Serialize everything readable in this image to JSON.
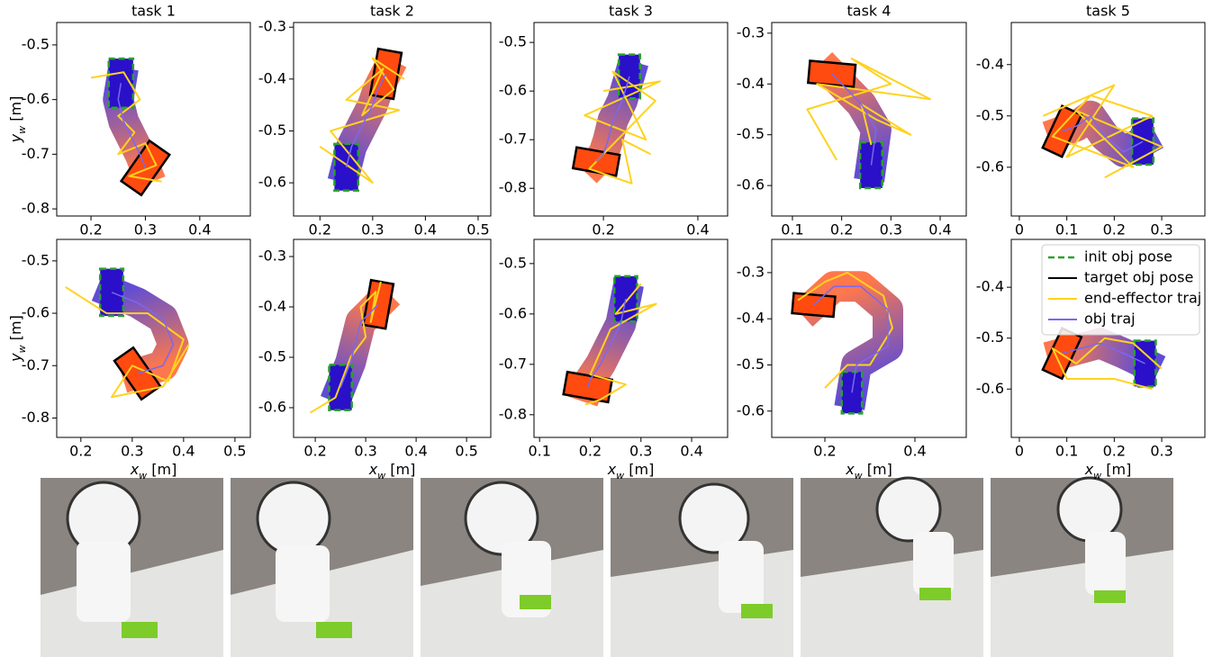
{
  "chart_data": [
    {
      "type": "trajectory",
      "title": "task 1",
      "ylabel": "yw [m]",
      "xlim": [
        0.137,
        0.493
      ],
      "ylim": [
        -0.813,
        -0.459
      ],
      "xticks": [
        0.2,
        0.3,
        0.4
      ],
      "yticks": [
        -0.8,
        -0.7,
        -0.6,
        -0.5
      ],
      "init_pose": [
        0.255,
        -0.57,
        0
      ],
      "target_pose": [
        0.3,
        -0.725,
        35
      ],
      "obj_traj": {
        "x": [
          0.255,
          0.25,
          0.26,
          0.275,
          0.29,
          0.3
        ],
        "y": [
          -0.57,
          -0.6,
          -0.64,
          -0.67,
          -0.7,
          -0.725
        ]
      },
      "ee_traj": {
        "x": [
          0.2,
          0.26,
          0.29,
          0.25,
          0.28,
          0.25,
          0.3,
          0.32,
          0.27,
          0.33
        ],
        "y": [
          -0.56,
          -0.55,
          -0.6,
          -0.63,
          -0.66,
          -0.7,
          -0.68,
          -0.72,
          -0.74,
          -0.75
        ]
      }
    },
    {
      "type": "trajectory",
      "title": "task 2",
      "xlim": [
        0.15,
        0.524
      ],
      "ylim": [
        -0.664,
        -0.291
      ],
      "xticks": [
        0.2,
        0.3,
        0.4,
        0.5
      ],
      "yticks": [
        -0.6,
        -0.5,
        -0.4,
        -0.3
      ],
      "init_pose": [
        0.25,
        -0.57,
        0
      ],
      "target_pose": [
        0.325,
        -0.39,
        10
      ],
      "obj_traj": {
        "x": [
          0.25,
          0.26,
          0.28,
          0.3,
          0.31,
          0.325
        ],
        "y": [
          -0.57,
          -0.53,
          -0.49,
          -0.45,
          -0.42,
          -0.39
        ]
      },
      "ee_traj": {
        "x": [
          0.2,
          0.3,
          0.22,
          0.35,
          0.25,
          0.32,
          0.28,
          0.34,
          0.3,
          0.36
        ],
        "y": [
          -0.53,
          -0.6,
          -0.5,
          -0.46,
          -0.44,
          -0.38,
          -0.47,
          -0.42,
          -0.36,
          -0.4
        ]
      }
    },
    {
      "type": "trajectory",
      "title": "task 3",
      "xlim": [
        0.053,
        0.463
      ],
      "ylim": [
        -0.857,
        -0.459
      ],
      "xticks": [
        0.2,
        0.4
      ],
      "yticks": [
        -0.8,
        -0.7,
        -0.6,
        -0.5
      ],
      "init_pose": [
        0.255,
        -0.57,
        0
      ],
      "target_pose": [
        0.185,
        -0.745,
        100
      ],
      "obj_traj": {
        "x": [
          0.255,
          0.24,
          0.22,
          0.21,
          0.2,
          0.185
        ],
        "y": [
          -0.57,
          -0.62,
          -0.66,
          -0.7,
          -0.73,
          -0.745
        ]
      },
      "ee_traj": {
        "x": [
          0.2,
          0.32,
          0.16,
          0.29,
          0.22,
          0.31,
          0.17,
          0.26,
          0.24,
          0.3
        ],
        "y": [
          -0.6,
          -0.58,
          -0.65,
          -0.7,
          -0.56,
          -0.62,
          -0.76,
          -0.79,
          -0.7,
          -0.73
        ]
      }
    },
    {
      "type": "trajectory",
      "title": "task 4",
      "xlim": [
        0.058,
        0.453
      ],
      "ylim": [
        -0.66,
        -0.279
      ],
      "xticks": [
        0.1,
        0.2,
        0.3,
        0.4
      ],
      "yticks": [
        -0.6,
        -0.5,
        -0.4,
        -0.3
      ],
      "init_pose": [
        0.26,
        -0.56,
        0
      ],
      "target_pose": [
        0.18,
        -0.38,
        95
      ],
      "obj_traj": {
        "x": [
          0.26,
          0.27,
          0.24,
          0.21,
          0.19,
          0.18
        ],
        "y": [
          -0.56,
          -0.49,
          -0.44,
          -0.41,
          -0.39,
          -0.38
        ]
      },
      "ee_traj": {
        "x": [
          0.19,
          0.13,
          0.3,
          0.22,
          0.38,
          0.15,
          0.27,
          0.34,
          0.24,
          0.26
        ],
        "y": [
          -0.55,
          -0.45,
          -0.4,
          -0.35,
          -0.43,
          -0.4,
          -0.47,
          -0.5,
          -0.44,
          -0.52
        ]
      }
    },
    {
      "type": "trajectory",
      "title": "task 5",
      "xlim": [
        -0.017,
        0.391
      ],
      "ylim": [
        -0.695,
        -0.318
      ],
      "xticks": [
        0.0,
        0.1,
        0.2,
        0.3
      ],
      "yticks": [
        -0.6,
        -0.5,
        -0.4
      ],
      "init_pose": [
        0.26,
        -0.55,
        0
      ],
      "target_pose": [
        0.09,
        -0.53,
        25
      ],
      "obj_traj": {
        "x": [
          0.26,
          0.22,
          0.18,
          0.15,
          0.12,
          0.09
        ],
        "y": [
          -0.55,
          -0.57,
          -0.54,
          -0.5,
          -0.52,
          -0.53
        ]
      },
      "ee_traj": {
        "x": [
          0.05,
          0.2,
          0.1,
          0.28,
          0.15,
          0.07,
          0.24,
          0.12,
          0.3,
          0.18
        ],
        "y": [
          -0.5,
          -0.44,
          -0.58,
          -0.5,
          -0.46,
          -0.54,
          -0.6,
          -0.49,
          -0.56,
          -0.62
        ]
      }
    },
    {
      "type": "trajectory",
      "xlabel": "xw [m]",
      "ylabel": "yw [m]",
      "xlim": [
        0.153,
        0.53
      ],
      "ylim": [
        -0.837,
        -0.459
      ],
      "xticks": [
        0.2,
        0.3,
        0.4,
        0.5
      ],
      "yticks": [
        -0.8,
        -0.7,
        -0.6,
        -0.5
      ],
      "init_pose": [
        0.26,
        -0.56,
        0
      ],
      "target_pose": [
        0.31,
        -0.715,
        -35
      ],
      "obj_traj": {
        "x": [
          0.26,
          0.31,
          0.36,
          0.38,
          0.36,
          0.31
        ],
        "y": [
          -0.56,
          -0.58,
          -0.61,
          -0.66,
          -0.7,
          -0.715
        ]
      },
      "ee_traj": {
        "x": [
          0.17,
          0.25,
          0.33,
          0.4,
          0.37,
          0.3,
          0.26,
          0.36,
          0.41
        ],
        "y": [
          -0.55,
          -0.6,
          -0.6,
          -0.65,
          -0.73,
          -0.7,
          -0.76,
          -0.74,
          -0.66
        ]
      }
    },
    {
      "type": "trajectory",
      "xlabel": "xw [m]",
      "xlim": [
        0.157,
        0.548
      ],
      "ylim": [
        -0.659,
        -0.266
      ],
      "xticks": [
        0.2,
        0.3,
        0.4,
        0.5
      ],
      "yticks": [
        -0.6,
        -0.5,
        -0.4,
        -0.3
      ],
      "init_pose": [
        0.25,
        -0.56,
        0
      ],
      "target_pose": [
        0.325,
        -0.395,
        10
      ],
      "obj_traj": {
        "x": [
          0.25,
          0.27,
          0.28,
          0.29,
          0.31,
          0.325
        ],
        "y": [
          -0.56,
          -0.51,
          -0.47,
          -0.43,
          -0.41,
          -0.395
        ]
      },
      "ee_traj": {
        "x": [
          0.19,
          0.24,
          0.27,
          0.3,
          0.29,
          0.32,
          0.31,
          0.33
        ],
        "y": [
          -0.61,
          -0.58,
          -0.5,
          -0.46,
          -0.4,
          -0.37,
          -0.43,
          -0.35
        ]
      }
    },
    {
      "type": "trajectory",
      "xlabel": "xw [m]",
      "xlim": [
        0.089,
        0.471
      ],
      "ylim": [
        -0.845,
        -0.452
      ],
      "xticks": [
        0.1,
        0.2,
        0.3,
        0.4
      ],
      "yticks": [
        -0.8,
        -0.7,
        -0.6,
        -0.5
      ],
      "init_pose": [
        0.27,
        -0.57,
        0
      ],
      "target_pose": [
        0.195,
        -0.745,
        100
      ],
      "obj_traj": {
        "x": [
          0.27,
          0.26,
          0.24,
          0.22,
          0.2,
          0.195
        ],
        "y": [
          -0.57,
          -0.62,
          -0.66,
          -0.7,
          -0.73,
          -0.745
        ]
      },
      "ee_traj": {
        "x": [
          0.3,
          0.25,
          0.33,
          0.24,
          0.2,
          0.27,
          0.22,
          0.19
        ],
        "y": [
          -0.54,
          -0.6,
          -0.58,
          -0.63,
          -0.72,
          -0.74,
          -0.77,
          -0.78
        ]
      }
    },
    {
      "type": "trajectory",
      "xlabel": "xw [m]",
      "xlim": [
        0.082,
        0.514
      ],
      "ylim": [
        -0.657,
        -0.228
      ],
      "xticks": [
        0.2,
        0.4
      ],
      "yticks": [
        -0.6,
        -0.5,
        -0.4,
        -0.3
      ],
      "init_pose": [
        0.26,
        -0.56,
        0
      ],
      "target_pose": [
        0.175,
        -0.37,
        95
      ],
      "obj_traj": {
        "x": [
          0.26,
          0.27,
          0.34,
          0.34,
          0.28,
          0.22,
          0.175
        ],
        "y": [
          -0.56,
          -0.5,
          -0.46,
          -0.38,
          -0.33,
          -0.33,
          -0.37
        ]
      },
      "ee_traj": {
        "x": [
          0.2,
          0.25,
          0.3,
          0.35,
          0.33,
          0.25,
          0.2,
          0.14
        ],
        "y": [
          -0.55,
          -0.5,
          -0.5,
          -0.42,
          -0.35,
          -0.3,
          -0.32,
          -0.36
        ]
      }
    },
    {
      "type": "trajectory",
      "xlabel": "xw [m]",
      "xlim": [
        -0.017,
        0.391
      ],
      "ylim": [
        -0.695,
        -0.306
      ],
      "xticks": [
        0.0,
        0.1,
        0.2,
        0.3
      ],
      "yticks": [
        -0.6,
        -0.5,
        -0.4
      ],
      "init_pose": [
        0.265,
        -0.55,
        0
      ],
      "target_pose": [
        0.09,
        -0.53,
        25
      ],
      "obj_traj": {
        "x": [
          0.265,
          0.22,
          0.17,
          0.13,
          0.09
        ],
        "y": [
          -0.55,
          -0.53,
          -0.51,
          -0.52,
          -0.53
        ]
      },
      "ee_traj": {
        "x": [
          0.3,
          0.24,
          0.18,
          0.12,
          0.07,
          0.1,
          0.2,
          0.28
        ],
        "y": [
          -0.56,
          -0.51,
          -0.5,
          -0.55,
          -0.52,
          -0.58,
          -0.58,
          -0.6
        ]
      },
      "legend": [
        {
          "name": "init obj pose",
          "color": "#2ca02c"
        },
        {
          "name": "target obj pose",
          "color": "#000000"
        },
        {
          "name": "end-effector traj",
          "color": "#ffd21f"
        },
        {
          "name": "obj traj",
          "color": "#7b68ee"
        }
      ]
    }
  ]
}
